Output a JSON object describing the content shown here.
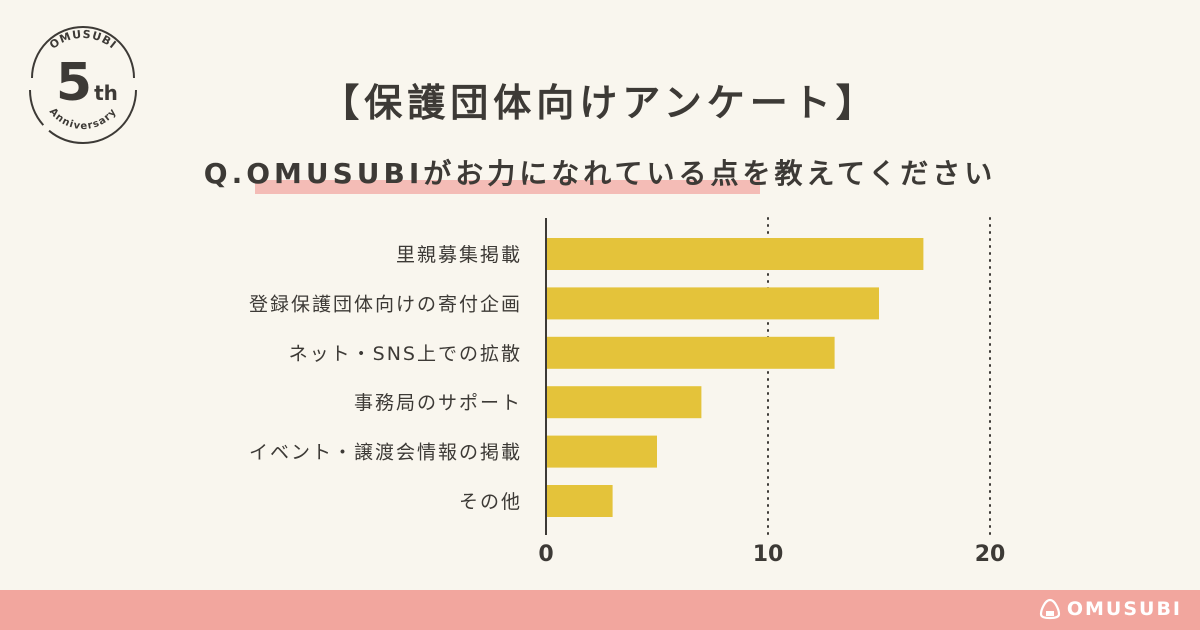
{
  "badge": {
    "ring_text": "OMUSUBI",
    "big_number": "5",
    "suffix": "th",
    "subtitle": "Anniversary"
  },
  "title": "【保護団体向けアンケート】",
  "question": "Q.OMUSUBIがお力になれている点を教えてください",
  "footer": {
    "logo_text": "OMUSUBI"
  },
  "colors": {
    "background": "#f9f6ee",
    "bar": "#e4c33a",
    "highlight": "#f4bcb6",
    "footer": "#f2a69e",
    "text": "#3d3a36"
  },
  "chart_data": {
    "type": "bar",
    "orientation": "horizontal",
    "categories": [
      "里親募集掲載",
      "登録保護団体向けの寄付企画",
      "ネット・SNS上での拡散",
      "事務局のサポート",
      "イベント・譲渡会情報の掲載",
      "その他"
    ],
    "values": [
      17,
      15,
      13,
      7,
      5,
      3
    ],
    "xlim": [
      0,
      20
    ],
    "x_ticks": [
      0,
      10,
      20
    ],
    "grid": "dotted vertical lines at 10 and 20",
    "legend": "none"
  }
}
